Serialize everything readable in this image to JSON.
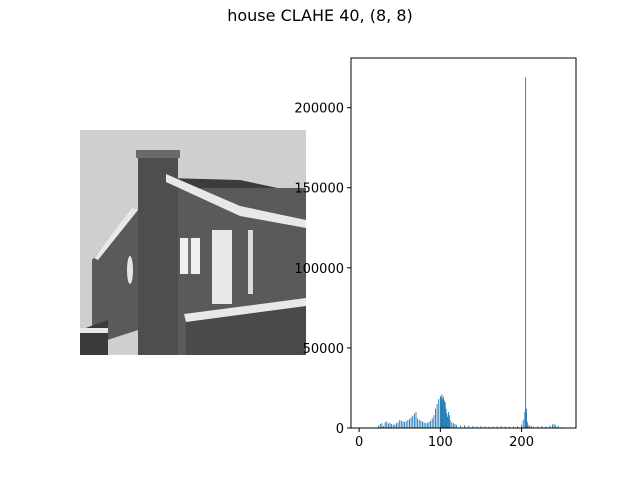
{
  "figure": {
    "title": "house CLAHE 40, (8, 8)"
  },
  "image_panel": {
    "sky_color": "#cfcfcf",
    "wall_color": "#5a5a5a",
    "trim_color": "#e8e8e8"
  },
  "chart_data": {
    "type": "bar",
    "title": "",
    "xlabel": "",
    "ylabel": "",
    "xlim": [
      -10,
      267
    ],
    "ylim": [
      0,
      231000
    ],
    "xticks": [
      0,
      100,
      200
    ],
    "xtick_labels": [
      "0",
      "100",
      "200"
    ],
    "yticks": [
      0,
      50000,
      100000,
      150000,
      200000
    ],
    "ytick_labels": [
      "0",
      "50000",
      "100000",
      "150000",
      "200000"
    ],
    "bar_color": "#1f77b4",
    "grid": false,
    "legend": "none",
    "x": [
      24,
      26,
      28,
      30,
      32,
      34,
      36,
      38,
      40,
      42,
      44,
      46,
      48,
      50,
      52,
      54,
      56,
      58,
      60,
      62,
      64,
      66,
      68,
      70,
      72,
      74,
      76,
      78,
      80,
      82,
      84,
      86,
      88,
      90,
      92,
      94,
      96,
      98,
      100,
      101,
      102,
      103,
      104,
      105,
      106,
      107,
      108,
      109,
      110,
      111,
      112,
      114,
      116,
      118,
      120,
      125,
      130,
      135,
      140,
      145,
      150,
      155,
      160,
      165,
      170,
      175,
      180,
      185,
      190,
      195,
      200,
      202,
      204,
      205,
      206,
      207,
      208,
      210,
      212,
      215,
      220,
      225,
      230,
      235,
      238,
      240,
      242,
      245,
      250
    ],
    "values": [
      1500,
      2500,
      3000,
      1200,
      3500,
      4000,
      2800,
      3200,
      2500,
      2000,
      2200,
      3000,
      3500,
      5000,
      4500,
      4000,
      3800,
      4200,
      5000,
      5500,
      6500,
      7500,
      9000,
      10000,
      6000,
      5000,
      4500,
      4000,
      3500,
      3000,
      3200,
      3800,
      4500,
      6000,
      8000,
      12000,
      15000,
      18000,
      20000,
      19000,
      21000,
      18000,
      19500,
      17000,
      16000,
      12000,
      9000,
      7000,
      10000,
      8000,
      5000,
      3500,
      3000,
      2500,
      2000,
      1500,
      1800,
      1500,
      1200,
      1000,
      1200,
      1000,
      800,
      900,
      1000,
      1100,
      900,
      800,
      900,
      1000,
      2000,
      5000,
      10000,
      219000,
      12000,
      4000,
      2000,
      1500,
      1200,
      1000,
      900,
      1200,
      1000,
      1500,
      2200,
      2500,
      1800,
      1200,
      600
    ]
  }
}
